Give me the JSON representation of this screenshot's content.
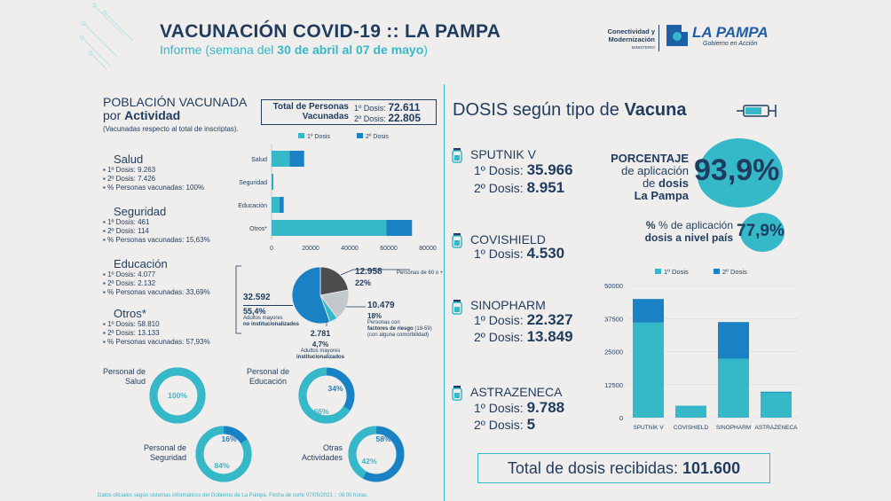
{
  "header": {
    "title": "VACUNACIÓN COVID-19 :: LA PAMPA",
    "subtitle_pre": "Informe (semana del ",
    "subtitle_bold": "30 de abril al 07 de mayo",
    "subtitle_post": ")",
    "logo_left_l1": "Conectividad y",
    "logo_left_l2": "Modernización",
    "logo_left_l3": "MINISTERIO",
    "logo_main": "LA PAMPA",
    "logo_sub": "Gobierno en Acción"
  },
  "colors": {
    "dose1": "#35b8c8",
    "dose2": "#1a82c4",
    "navy": "#1f3b5e",
    "grey": "#4d4d4f",
    "light": "#c2c8cc"
  },
  "left": {
    "title_l1": "POBLACIÓN VACUNADA",
    "title_l2_pre": "por ",
    "title_l2_bold": "Actividad",
    "note": "(Vacunadas respecto al total de inscriptas).",
    "total_label": "Total de Personas Vacunadas",
    "total_d1_label": "1º Dosis:",
    "total_d1_value": "72.611",
    "total_d2_label": "2º Dosis:",
    "total_d2_value": "22.805",
    "categories": [
      {
        "name": "Salud",
        "d1": "1º Dosis: 9.263",
        "d2": "2º Dosis: 7.426",
        "pct": "% Personas vacunadas: 100%"
      },
      {
        "name": "Seguridad",
        "d1": "1º Dosis: 461",
        "d2": "2º Dosis: 114",
        "pct": "% Personas vacunadas: 15,63%"
      },
      {
        "name": "Educación",
        "d1": "1º Dosis: 4.077",
        "d2": "2º Dosis: 2.132",
        "pct": "% Personas vacunadas: 33,69%"
      },
      {
        "name": "Otros*",
        "d1": "1º Dosis: 58.810",
        "d2": "2º Dosis: 13.133",
        "pct": "% Personas vacunadas: 57,93%"
      }
    ],
    "pie_labels": {
      "a_value": "12.958",
      "a_pct": "22%",
      "a_desc": "Personas de 60 o +",
      "b_value": "10.479",
      "b_pct": "18%",
      "b_desc1": "Personas con",
      "b_desc2": "factores de riesgo",
      "b_desc3": "(18-59)",
      "b_desc4": "(con alguna comorbilidad)",
      "c_value": "2.781",
      "c_pct": "4,7%",
      "c_desc1": "Adultos mayores",
      "c_desc2": "institucionalizados",
      "d_value": "32.592",
      "d_pct": "55,4%",
      "d_desc1": "Adultos mayores",
      "d_desc2": "no institucionalizados"
    },
    "donuts": [
      {
        "label_l1": "Personal de",
        "label_l2": "Salud",
        "pct": "100%",
        "rest": ""
      },
      {
        "label_l1": "Personal de",
        "label_l2": "Educación",
        "pct": "66%",
        "rest": "34%"
      },
      {
        "label_l1": "Personal de",
        "label_l2": "Seguridad",
        "pct": "84%",
        "rest": "16%"
      },
      {
        "label_l1": "Otras",
        "label_l2": "Actividades",
        "pct": "42%",
        "rest": "58%"
      }
    ],
    "footnote": "Datos oficiales según sistemas informáticos del Gobierno de La Pampa. Fecha de corte 07/05/2021 :: 08.00 horas."
  },
  "right": {
    "title_pre": "DOSIS según tipo de ",
    "title_bold": "Vacuna",
    "vaccines": [
      {
        "name": "SPUTNIK V",
        "l1": "1º Dosis: ",
        "v1": "35.966",
        "l2": "2º Dosis: ",
        "v2": "8.951"
      },
      {
        "name": "COVISHIELD",
        "l1": "1º Dosis: ",
        "v1": "4.530"
      },
      {
        "name": "SINOPHARM",
        "l1": "1º Dosis: ",
        "v1": "22.327",
        "l2": "2º Dosis: ",
        "v2": "13.849"
      },
      {
        "name": "ASTRAZENECA",
        "l1": "1º Dosis: ",
        "v1": "9.788",
        "l2": "2º Dosis: ",
        "v2": "5"
      }
    ],
    "pct_prov_l1": "PORCENTAJE",
    "pct_prov_l2": "de aplicación",
    "pct_prov_l3_pre": "de ",
    "pct_prov_l3_bold": "dosis",
    "pct_prov_l4": "La Pampa",
    "pct_prov_value": "93,9%",
    "pct_nat_l1": "% de aplicación",
    "pct_nat_l2": "dosis a nivel país",
    "pct_nat_value": "77,9%",
    "total_label": "Total de dosis recibidas: ",
    "total_value": "101.600"
  },
  "chart_data": [
    {
      "type": "bar",
      "orientation": "horizontal",
      "stacked": true,
      "categories": [
        "Salud",
        "Seguridad",
        "Educación",
        "Otros*"
      ],
      "series": [
        {
          "name": "1º Dosis",
          "values": [
            9263,
            461,
            4077,
            58810
          ]
        },
        {
          "name": "2º Dosis",
          "values": [
            7426,
            114,
            2132,
            13133
          ]
        }
      ],
      "xticks": [
        "0",
        "20000",
        "40000",
        "60000",
        "80000"
      ],
      "xlim": [
        0,
        80000
      ],
      "legend": "top"
    },
    {
      "type": "pie",
      "labels": [
        "Personas de 60 o +",
        "Personas con factores de riesgo (18-59) (con alguna comorbilidad)",
        "Adultos mayores institucionalizados",
        "Adultos mayores no institucionalizados"
      ],
      "values": [
        12958,
        10479,
        2781,
        32592
      ],
      "colors": [
        "#4d4d4f",
        "#c2c8cc",
        "#35b8c8",
        "#1a82c4"
      ]
    },
    {
      "type": "bar",
      "stacked": true,
      "categories": [
        "SPUTNIK V",
        "COVISHIELD",
        "SINOPHARM",
        "ASTRAZENECA"
      ],
      "series": [
        {
          "name": "1º Dosis",
          "values": [
            35966,
            4530,
            22327,
            9788
          ]
        },
        {
          "name": "2º Dosis",
          "values": [
            8951,
            0,
            13849,
            5
          ]
        }
      ],
      "yticks": [
        "0",
        "12500",
        "25000",
        "37500",
        "50000"
      ],
      "ylim": [
        0,
        50000
      ],
      "legend": "top"
    }
  ]
}
